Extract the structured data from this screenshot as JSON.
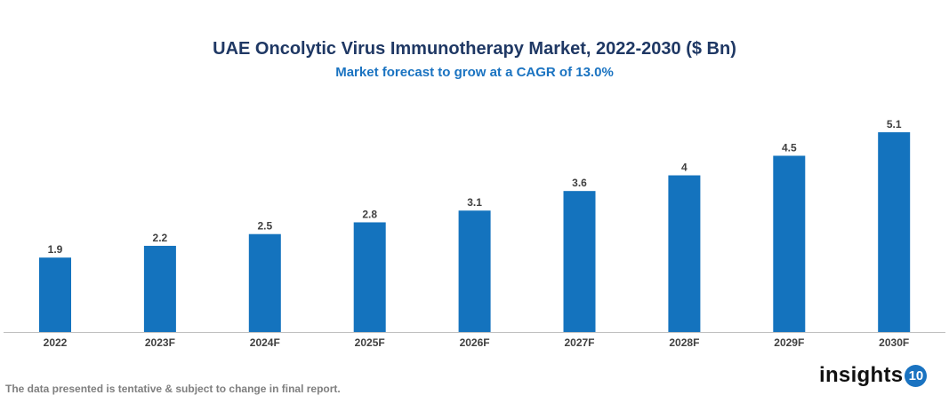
{
  "chart_data": {
    "type": "bar",
    "title": "UAE Oncolytic Virus Immunotherapy Market, 2022-2030 ($ Bn)",
    "subtitle": "Market forecast to grow at a CAGR of 13.0%",
    "categories": [
      "2022",
      "2023F",
      "2024F",
      "2025F",
      "2026F",
      "2027F",
      "2028F",
      "2029F",
      "2030F"
    ],
    "values": [
      1.9,
      2.2,
      2.5,
      2.8,
      3.1,
      3.6,
      4,
      4.5,
      5.1
    ],
    "xlabel": "",
    "ylabel": "",
    "ylim": [
      0,
      5.1
    ],
    "grid": false,
    "bar_color": "#1473be"
  },
  "footnote": "The data presented is tentative & subject to change in final report.",
  "logo": {
    "text": "insights",
    "badge": "10"
  }
}
